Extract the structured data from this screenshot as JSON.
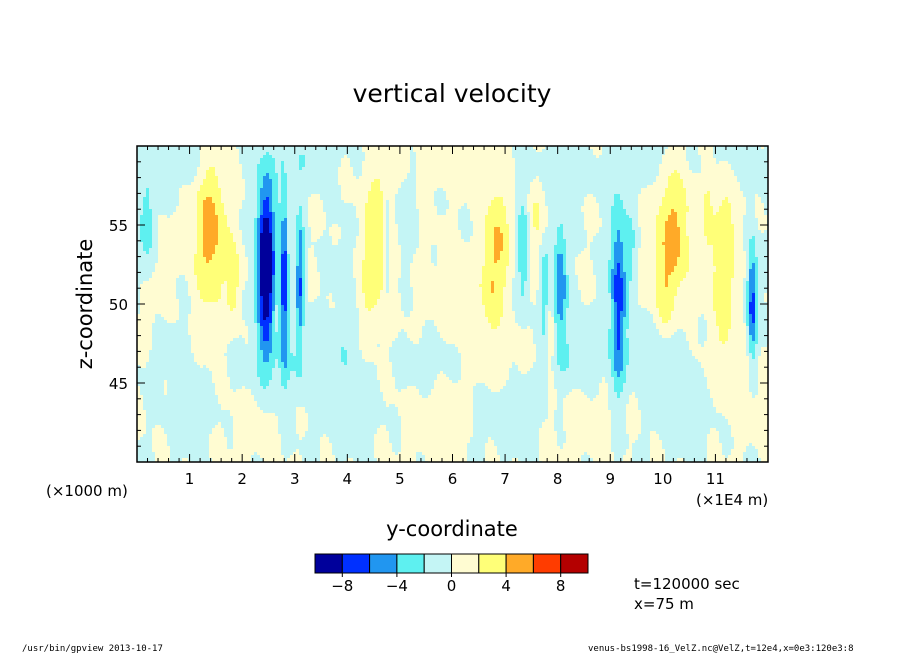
{
  "chart_data": {
    "type": "heatmap",
    "title": "vertical velocity",
    "xlabel": "y-coordinate",
    "ylabel": "z-coordinate",
    "x_unit_left": "(×1000 m)",
    "x_unit_right": "(×1E4 m)",
    "xlim": [
      0,
      120000
    ],
    "ylim": [
      40000,
      60000
    ],
    "x_ticks": [
      {
        "value": 10000,
        "label": "1"
      },
      {
        "value": 20000,
        "label": "2"
      },
      {
        "value": 30000,
        "label": "3"
      },
      {
        "value": 40000,
        "label": "4"
      },
      {
        "value": 50000,
        "label": "5"
      },
      {
        "value": 60000,
        "label": "6"
      },
      {
        "value": 70000,
        "label": "7"
      },
      {
        "value": 80000,
        "label": "8"
      },
      {
        "value": 90000,
        "label": "9"
      },
      {
        "value": 100000,
        "label": "10"
      },
      {
        "value": 110000,
        "label": "11"
      }
    ],
    "y_ticks": [
      {
        "value": 45000,
        "label": "45"
      },
      {
        "value": 50000,
        "label": "50"
      },
      {
        "value": 55000,
        "label": "55"
      }
    ],
    "colorbar": {
      "levels": [
        -10,
        -8,
        -6,
        -4,
        -2,
        0,
        2,
        4,
        6,
        8,
        10
      ],
      "colors": [
        "#00009b",
        "#0030ff",
        "#2196f0",
        "#5ef0f0",
        "#c4f5f5",
        "#fffcd2",
        "#ffff78",
        "#ffaa28",
        "#ff3c00",
        "#b40000"
      ],
      "tick_labels": [
        "−8",
        "−4",
        "0",
        "4",
        "8"
      ],
      "tick_values": [
        -8,
        -4,
        0,
        4,
        8
      ]
    },
    "grid": false,
    "legend": "bottom-center colorbar"
  },
  "annotations": {
    "time": "t=120000 sec",
    "position": "x=75 m",
    "footer_left": "/usr/bin/gpview   2013-10-17",
    "footer_right": "venus-bs1998-16_VelZ.nc@VelZ,t=12e4,x=0e3:120e3:8"
  }
}
